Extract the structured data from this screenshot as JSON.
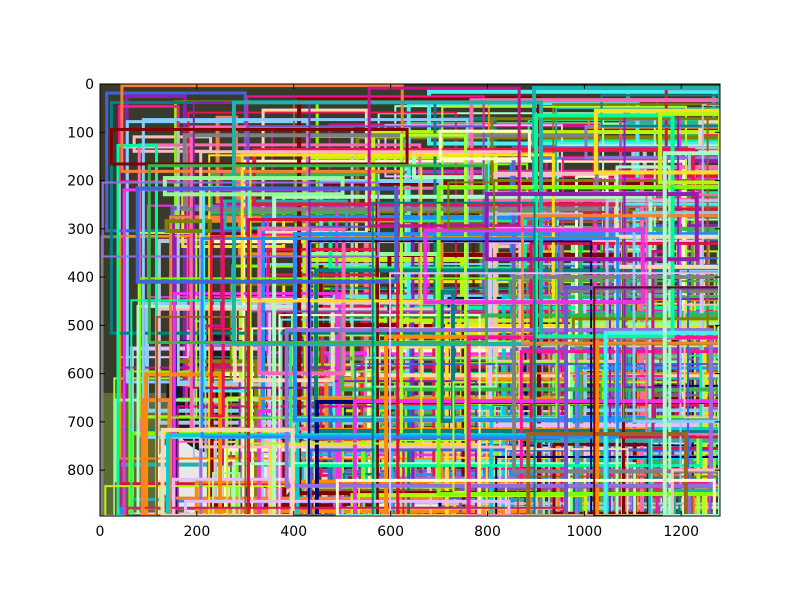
{
  "chart_data": {
    "type": "image-with-bounding-boxes",
    "title": "",
    "xlabel": "",
    "ylabel": "",
    "xlim": [
      0,
      1280
    ],
    "ylim": [
      895,
      0
    ],
    "x_ticks": [
      0,
      200,
      400,
      600,
      800,
      1000,
      1200
    ],
    "y_ticks": [
      0,
      100,
      200,
      300,
      400,
      500,
      600,
      700,
      800
    ],
    "grid": false,
    "background_image": "photo of a dog on grass, almost entirely covered by overlapping colored rectangles",
    "box_count_estimate": 450,
    "box_palette": [
      "#e6194b",
      "#3cb44b",
      "#ffe119",
      "#4363d8",
      "#f58231",
      "#911eb4",
      "#46f0f0",
      "#f032e6",
      "#bcf60c",
      "#fabebe",
      "#008080",
      "#e6beff",
      "#9a6324",
      "#fffac8",
      "#800000",
      "#aaffc3",
      "#808000",
      "#ffd8b1",
      "#000075",
      "#808080",
      "#ff69b4",
      "#00ced1",
      "#7fff00",
      "#dc143c",
      "#1e90ff",
      "#ff8c00",
      "#9370db",
      "#20b2aa",
      "#adff2f",
      "#ff1493",
      "#98fb98",
      "#87cefa",
      "#6a5acd",
      "#c71585",
      "#00fa9a",
      "#b0c4de"
    ]
  }
}
